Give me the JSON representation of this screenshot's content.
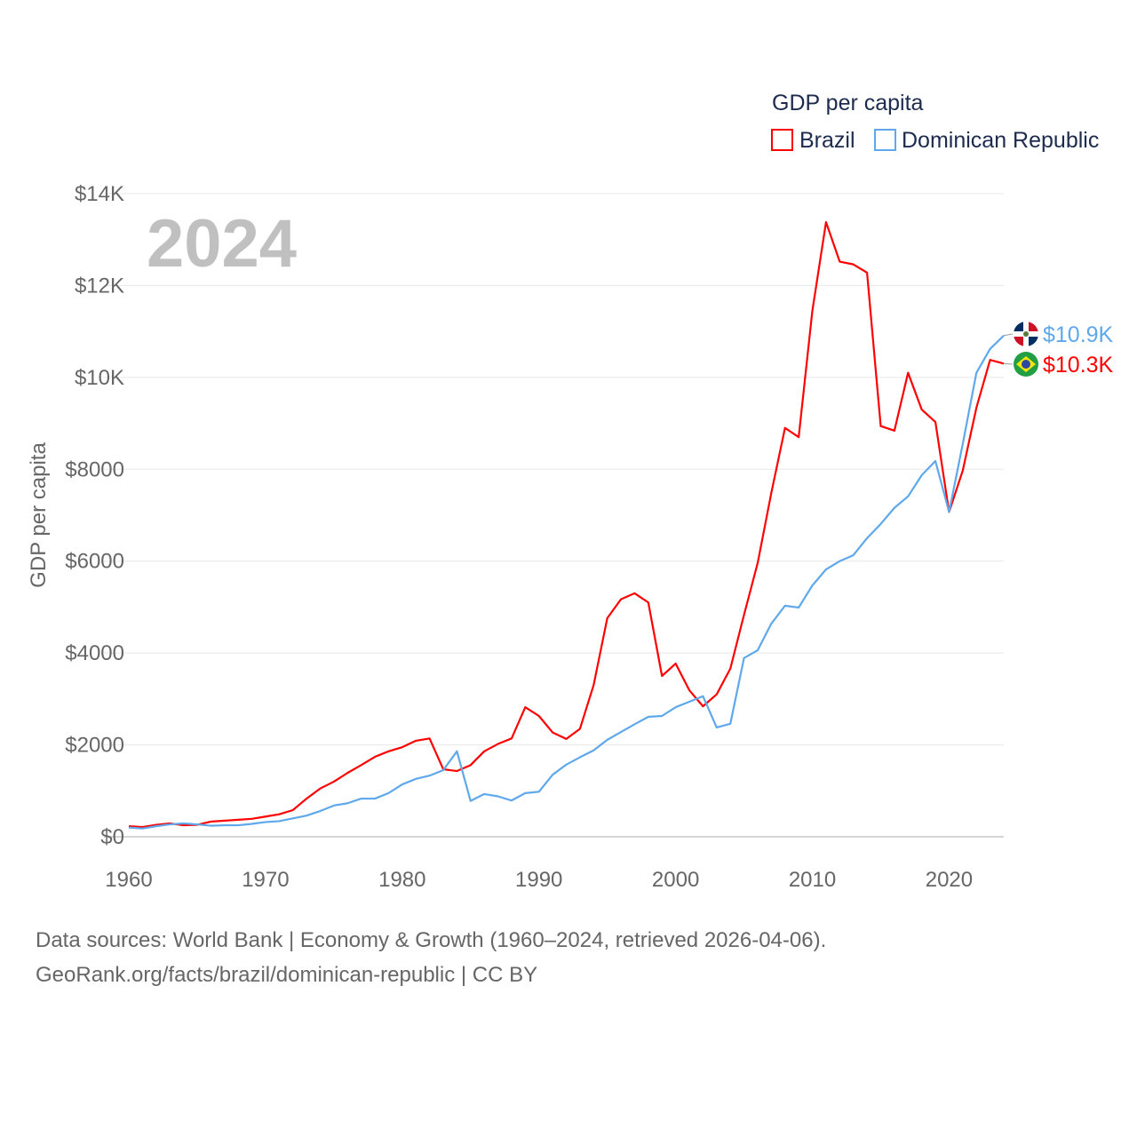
{
  "chart_data": {
    "type": "line",
    "title": "GDP per capita",
    "ylabel": "GDP per capita",
    "xlabel": "",
    "year_label": "2024",
    "xlim": [
      1960,
      2024
    ],
    "ylim": [
      0,
      14000
    ],
    "x_ticks": [
      "1960",
      "1970",
      "1980",
      "1990",
      "2000",
      "2010",
      "2020"
    ],
    "x_tick_values": [
      1960,
      1970,
      1980,
      1990,
      2000,
      2010,
      2020
    ],
    "y_ticks": [
      "$0",
      "$2000",
      "$4000",
      "$6000",
      "$8000",
      "$10K",
      "$12K",
      "$14K"
    ],
    "y_tick_values": [
      0,
      2000,
      4000,
      6000,
      8000,
      10000,
      12000,
      14000
    ],
    "grid": true,
    "legend_position": "top-right",
    "x_start": 1960,
    "series": [
      {
        "name": "Brazil",
        "color": "#ff0000",
        "end_label": "$10.3K",
        "flag": "brazil-flag",
        "values": [
          230,
          210,
          260,
          290,
          250,
          260,
          330,
          350,
          370,
          390,
          440,
          490,
          580,
          830,
          1050,
          1200,
          1390,
          1560,
          1740,
          1860,
          1950,
          2090,
          2140,
          1470,
          1430,
          1560,
          1860,
          2020,
          2140,
          2820,
          2630,
          2270,
          2130,
          2350,
          3300,
          4760,
          5170,
          5300,
          5100,
          3500,
          3770,
          3190,
          2840,
          3100,
          3660,
          4830,
          5960,
          7490,
          8900,
          8700,
          11450,
          13380,
          12520,
          12460,
          12280,
          8940,
          8840,
          10100,
          9300,
          9030,
          7070,
          7970,
          9340,
          10380,
          10300
        ]
      },
      {
        "name": "Dominican Republic",
        "color": "#5ea8eb",
        "end_label": "$10.9K",
        "flag": "dominican-republic-flag",
        "values": [
          200,
          180,
          230,
          270,
          290,
          270,
          240,
          250,
          250,
          280,
          320,
          340,
          400,
          460,
          560,
          680,
          730,
          830,
          830,
          950,
          1140,
          1260,
          1330,
          1450,
          1860,
          780,
          930,
          880,
          790,
          950,
          980,
          1350,
          1570,
          1730,
          1880,
          2110,
          2280,
          2450,
          2610,
          2630,
          2820,
          2940,
          3060,
          2380,
          2460,
          3890,
          4060,
          4640,
          5030,
          4990,
          5470,
          5820,
          6000,
          6130,
          6500,
          6810,
          7160,
          7410,
          7870,
          8180,
          7070,
          8550,
          10100,
          10620,
          10910
        ]
      }
    ]
  },
  "footer": {
    "line1": "Data sources: World Bank | Economy & Growth (1960–2024, retrieved 2026-04-06).",
    "line2": "GeoRank.org/facts/brazil/dominican-republic | CC BY"
  }
}
